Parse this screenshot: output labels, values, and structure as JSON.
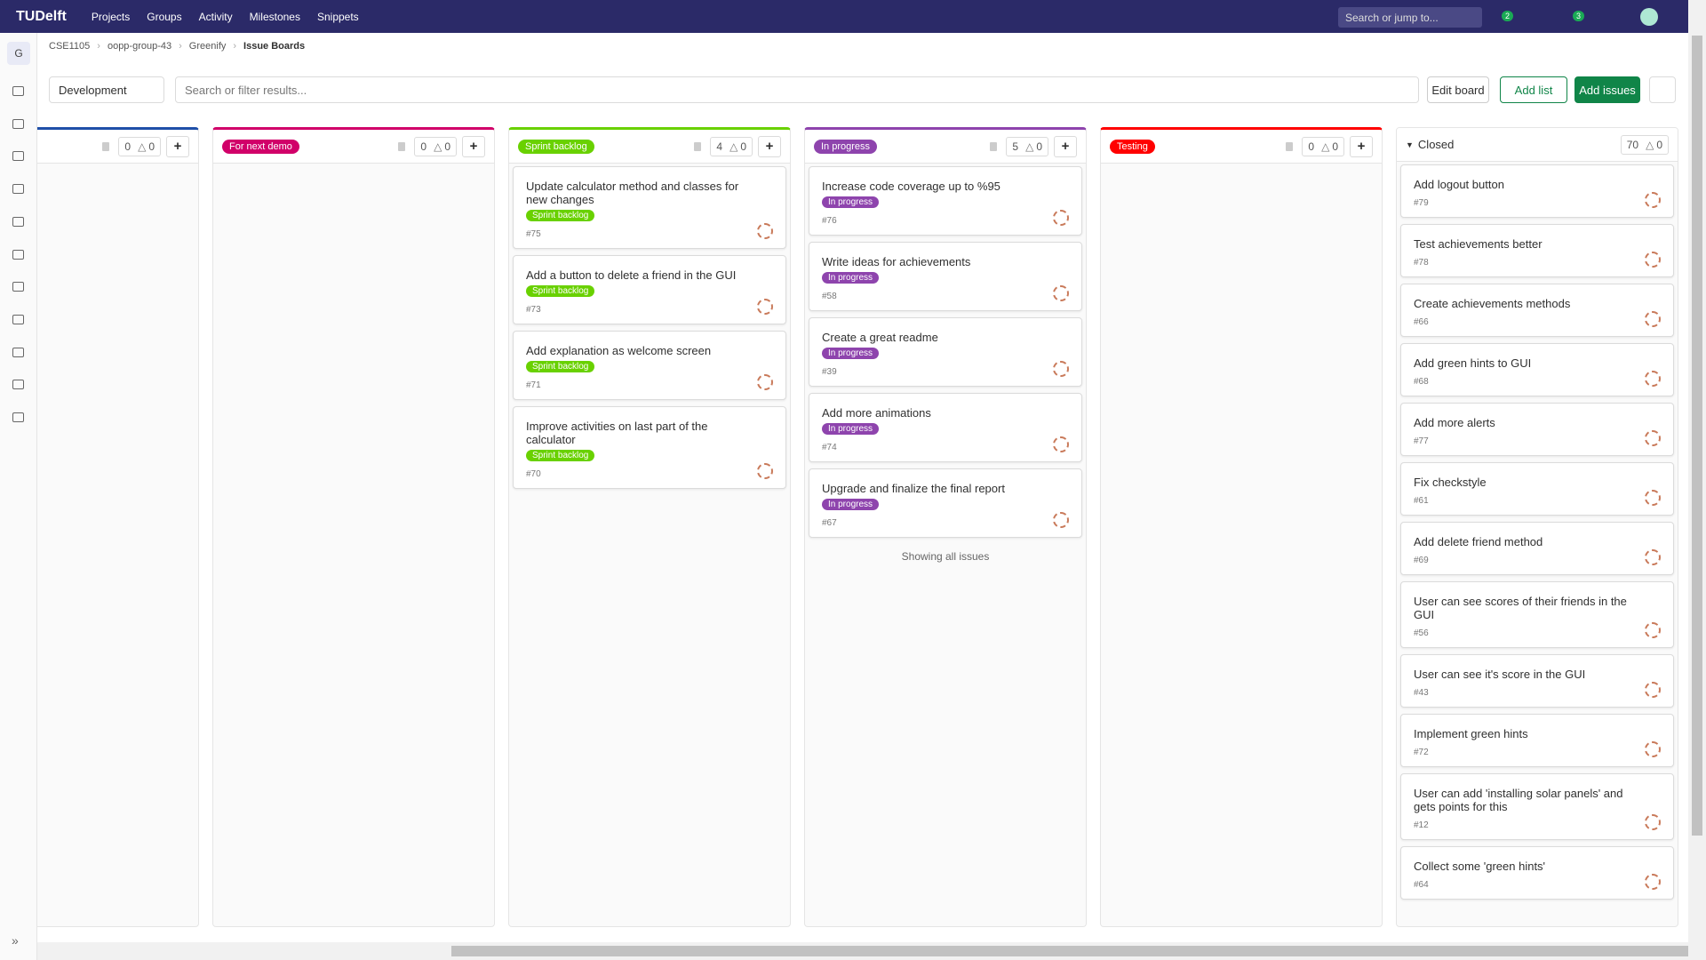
{
  "topbar": {
    "logo": "TUDelft",
    "menu": [
      "Projects",
      "Groups",
      "Activity",
      "Milestones",
      "Snippets"
    ],
    "search_placeholder": "Search or jump to...",
    "badges": [
      "2",
      "3"
    ]
  },
  "sidebar": {
    "project_letter": "G"
  },
  "breadcrumb": [
    "CSE1105",
    "oopp-group-43",
    "Greenify",
    "Issue Boards"
  ],
  "toolbar": {
    "board_select": "Development",
    "filter_placeholder": "Search or filter results...",
    "buttons": [
      "Edit board",
      "Add list",
      "Add issues"
    ]
  },
  "lists": [
    {
      "title": null,
      "color": "#1f4fa8",
      "issue_count": "0",
      "weight": "0",
      "cards": []
    },
    {
      "title": "For next demo",
      "color": "#d10069",
      "issue_count": "0",
      "weight": "0",
      "cards": []
    },
    {
      "title": "Sprint backlog",
      "color": "#69d100",
      "issue_count": "4",
      "weight": "0",
      "cards": [
        {
          "title": "Update calculator method and classes for new changes",
          "label": "Sprint backlog",
          "number": "#75"
        },
        {
          "title": "Add a button to delete a friend in the GUI",
          "label": "Sprint backlog",
          "number": "#73"
        },
        {
          "title": "Add explanation as welcome screen",
          "label": "Sprint backlog",
          "number": "#71"
        },
        {
          "title": "Improve activities on last part of the calculator",
          "label": "Sprint backlog",
          "number": "#70"
        }
      ]
    },
    {
      "title": "In progress",
      "color": "#8e44ad",
      "issue_count": "5",
      "weight": "0",
      "footer": "Showing all issues",
      "cards": [
        {
          "title": "Increase code coverage up to %95",
          "label": "In progress",
          "number": "#76"
        },
        {
          "title": "Write ideas for achievements",
          "label": "In progress",
          "number": "#58"
        },
        {
          "title": "Create a great readme",
          "label": "In progress",
          "number": "#39"
        },
        {
          "title": "Add more animations",
          "label": "In progress",
          "number": "#74"
        },
        {
          "title": "Upgrade and finalize the final report",
          "label": "In progress",
          "number": "#67"
        }
      ]
    },
    {
      "title": "Testing",
      "color": "#ff0000",
      "issue_count": "0",
      "weight": "0",
      "cards": []
    },
    {
      "title": "Closed",
      "color": null,
      "issue_count": "70",
      "weight": "0",
      "cards": [
        {
          "title": "Add logout button",
          "number": "#79"
        },
        {
          "title": "Test achievements better",
          "number": "#78"
        },
        {
          "title": "Create achievements methods",
          "number": "#66"
        },
        {
          "title": "Add green hints to GUI",
          "number": "#68"
        },
        {
          "title": "Add more alerts",
          "number": "#77"
        },
        {
          "title": "Fix checkstyle",
          "number": "#61"
        },
        {
          "title": "Add delete friend method",
          "number": "#69"
        },
        {
          "title": "User can see scores of their friends in the GUI",
          "number": "#56"
        },
        {
          "title": "User can see it's score in the GUI",
          "number": "#43"
        },
        {
          "title": "Implement green hints",
          "number": "#72"
        },
        {
          "title": "User can add 'installing solar panels' and gets points for this",
          "number": "#12"
        },
        {
          "title": "Collect some 'green hints'",
          "number": "#64"
        }
      ]
    }
  ]
}
